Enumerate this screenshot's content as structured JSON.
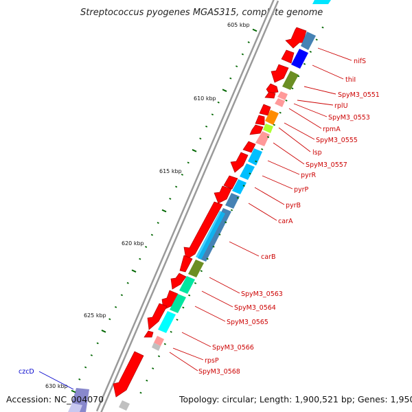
{
  "title": "Streptococcus pyogenes MGAS315, complete genome",
  "footer": {
    "accession": "Accession: NC_004070",
    "summary": "Topology: circular; Length: 1,900,521 bp; Genes: 1,950"
  },
  "colors": {
    "forward_gene": "#ff0000",
    "label_red": "#cc0000",
    "label_blue": "#0000cc",
    "tick_green": "#006600",
    "backbone": "#888888"
  },
  "scale_labels": [
    "605 kbp",
    "610 kbp",
    "615 kbp",
    "620 kbp",
    "625 kbp",
    "630 kbp"
  ],
  "gene_labels": [
    {
      "text": "nifS",
      "color": "#cc0000"
    },
    {
      "text": "thiI",
      "color": "#cc0000"
    },
    {
      "text": "SpyM3_0551",
      "color": "#cc0000"
    },
    {
      "text": "rplU",
      "color": "#cc0000"
    },
    {
      "text": "SpyM3_0553",
      "color": "#cc0000"
    },
    {
      "text": "rpmA",
      "color": "#cc0000"
    },
    {
      "text": "SpyM3_0555",
      "color": "#cc0000"
    },
    {
      "text": "lsp",
      "color": "#cc0000"
    },
    {
      "text": "SpyM3_0557",
      "color": "#cc0000"
    },
    {
      "text": "pyrR",
      "color": "#cc0000"
    },
    {
      "text": "pyrP",
      "color": "#cc0000"
    },
    {
      "text": "pyrB",
      "color": "#cc0000"
    },
    {
      "text": "carA",
      "color": "#cc0000"
    },
    {
      "text": "carB",
      "color": "#cc0000"
    },
    {
      "text": "SpyM3_0563",
      "color": "#cc0000"
    },
    {
      "text": "SpyM3_0564",
      "color": "#cc0000"
    },
    {
      "text": "SpyM3_0565",
      "color": "#cc0000"
    },
    {
      "text": "SpyM3_0566",
      "color": "#cc0000"
    },
    {
      "text": "rpsP",
      "color": "#cc0000"
    },
    {
      "text": "SpyM3_0568",
      "color": "#cc0000"
    },
    {
      "text": "czcD",
      "color": "#0000cc"
    }
  ]
}
